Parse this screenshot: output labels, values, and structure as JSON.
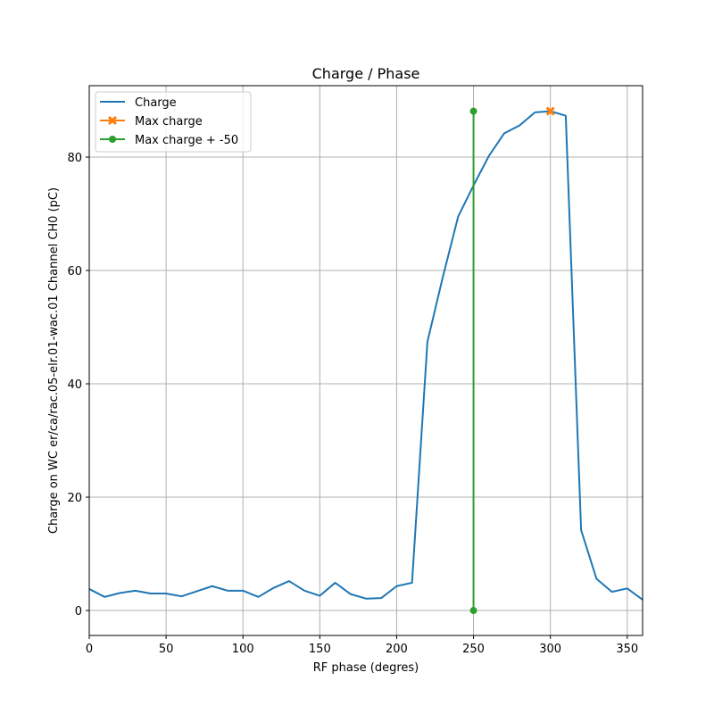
{
  "chart_data": {
    "type": "line",
    "title": "Charge / Phase",
    "xlabel": "RF phase (degres)",
    "ylabel": "Charge on WC er/ca/rac.05-elr.01-wac.01 Channel CH0 (pC)",
    "xlim": [
      0,
      360
    ],
    "ylim": [
      -4.4,
      92.6
    ],
    "grid": true,
    "legend_position": "top-left",
    "xticks": [
      0,
      50,
      100,
      150,
      200,
      250,
      300,
      350
    ],
    "yticks": [
      0,
      20,
      40,
      60,
      80
    ],
    "series": [
      {
        "name": "Charge",
        "color": "#1f77b4",
        "marker": "none",
        "x": [
          0,
          10,
          20,
          30,
          40,
          50,
          60,
          70,
          80,
          90,
          100,
          110,
          120,
          130,
          140,
          150,
          160,
          170,
          180,
          190,
          200,
          210,
          220,
          230,
          240,
          250,
          260,
          270,
          280,
          290,
          300,
          310,
          320,
          330,
          340,
          350,
          360
        ],
        "y": [
          3.8,
          2.4,
          3.1,
          3.5,
          3.0,
          3.0,
          2.5,
          3.4,
          4.3,
          3.5,
          3.5,
          2.4,
          4.0,
          5.2,
          3.5,
          2.6,
          4.9,
          2.9,
          2.1,
          2.2,
          4.3,
          4.9,
          47.4,
          58.8,
          69.5,
          75.0,
          80.2,
          84.2,
          85.6,
          87.9,
          88.1,
          87.3,
          14.2,
          5.6,
          3.3,
          3.9,
          1.9
        ]
      },
      {
        "name": "Max charge",
        "color": "#ff7f0e",
        "marker": "x",
        "x": [
          300
        ],
        "y": [
          88.1
        ]
      },
      {
        "name": "Max charge + -50",
        "color": "#2ca02c",
        "marker": "o",
        "x": [
          250,
          250
        ],
        "y": [
          0,
          88.1
        ]
      }
    ]
  }
}
